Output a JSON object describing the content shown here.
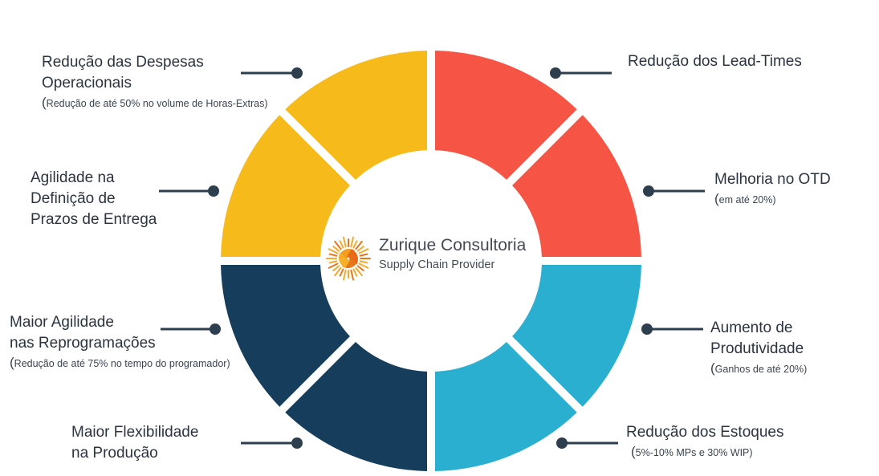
{
  "center": {
    "name": "Zurique Consultoria",
    "tagline": "Supply Chain Provider",
    "logo_icon": "sunburst-swirl-icon"
  },
  "colors": {
    "red": "#f65545",
    "yellow": "#f6bb1a",
    "blue": "#2bafd1",
    "navy": "#163e5c",
    "connector": "#2d3e4f"
  },
  "benefits": [
    {
      "title_lines": [
        "Redução dos Lead-Times"
      ],
      "note": "",
      "color": "red"
    },
    {
      "title_lines": [
        "Melhoria no OTD"
      ],
      "note": "em até 20%",
      "color": "red"
    },
    {
      "title_lines": [
        "Aumento de",
        "Produtividade"
      ],
      "note": "Ganhos de até 20%",
      "color": "blue"
    },
    {
      "title_lines": [
        "Redução dos Estoques"
      ],
      "note": "5%-10% MPs e 30% WIP",
      "color": "blue"
    },
    {
      "title_lines": [
        "Maior Flexibilidade",
        "na Produção"
      ],
      "note": "",
      "color": "navy"
    },
    {
      "title_lines": [
        "Maior Agilidade",
        "nas Reprogramações"
      ],
      "note": "Redução de até 75% no tempo do programador",
      "color": "navy"
    },
    {
      "title_lines": [
        "Agilidade na",
        "Definição de",
        "Prazos de Entrega"
      ],
      "note": "",
      "color": "yellow"
    },
    {
      "title_lines": [
        "Redução das Despesas",
        "Operacionais"
      ],
      "note": "Redução de até 50% no volume de Horas-Extras",
      "color": "yellow"
    }
  ]
}
